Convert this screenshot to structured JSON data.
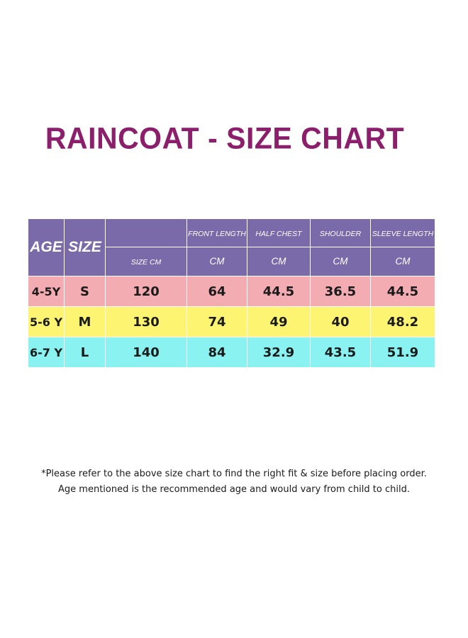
{
  "title": "RAINCOAT - SIZE CHART",
  "table": {
    "header": {
      "age": "AGE",
      "size": "SIZE",
      "size_cm_top": "",
      "size_cm": "SIZE CM",
      "front_length": "FRONT LENGTH",
      "half_chest": "HALF CHEST",
      "shoulder": "SHOULDER",
      "sleeve_length": "SLEEVE LENGTH",
      "unit_front": "CM",
      "unit_chest": "CM",
      "unit_shoulder": "CM",
      "unit_sleeve": "CM"
    },
    "rows": [
      {
        "age": "4-5Y",
        "size": "S",
        "size_cm": "120",
        "front_length": "64",
        "half_chest": "44.5",
        "shoulder": "36.5",
        "sleeve_length": "44.5"
      },
      {
        "age": "5-6 Y",
        "size": "M",
        "size_cm": "130",
        "front_length": "74",
        "half_chest": "49",
        "shoulder": "40",
        "sleeve_length": "48.2"
      },
      {
        "age": "6-7 Y",
        "size": "L",
        "size_cm": "140",
        "front_length": "84",
        "half_chest": "32.9",
        "shoulder": "43.5",
        "sleeve_length": "51.9"
      }
    ],
    "row_colors": [
      "#f3acb2",
      "#fdf572",
      "#8af2f0"
    ],
    "header_color": "#7b6aaa"
  },
  "notes": {
    "line1": "*Please refer to the above size chart to find the right fit & size before placing order.",
    "line2": "Age mentioned is the recommended age and would vary from child to child."
  },
  "colors": {
    "title": "#8c1f6b"
  }
}
